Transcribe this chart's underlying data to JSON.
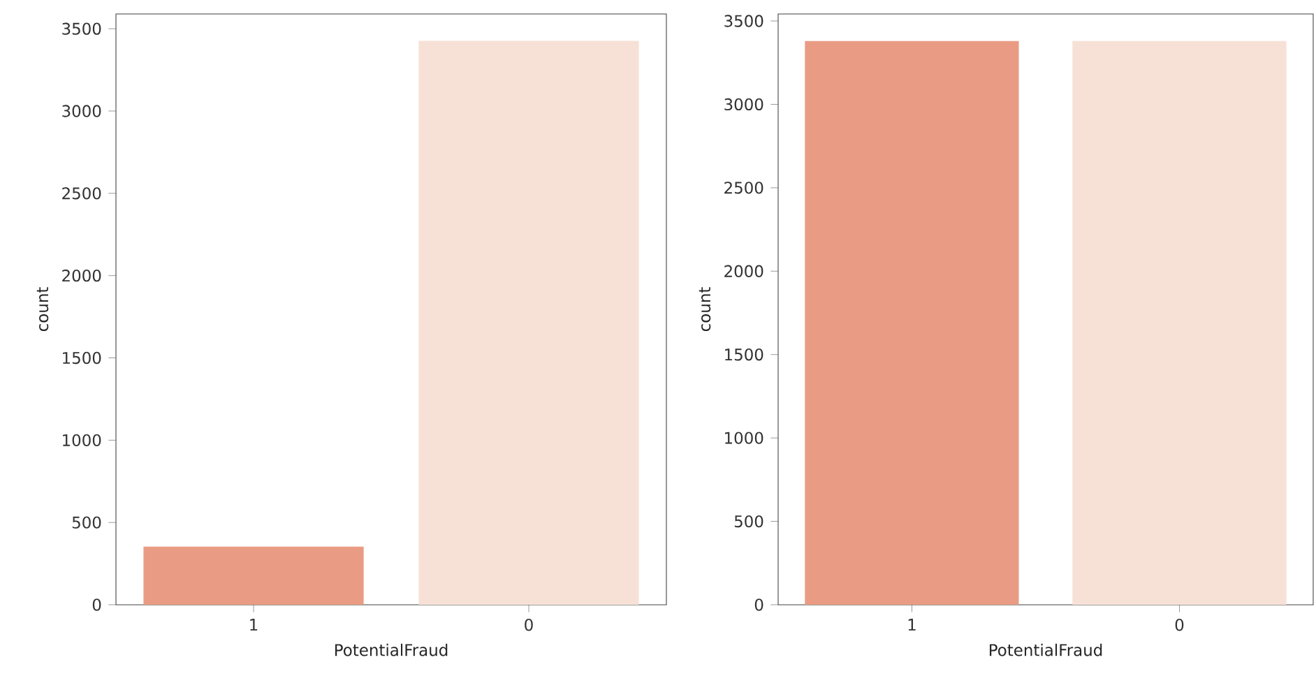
{
  "chart_data": [
    {
      "type": "bar",
      "categories": [
        "1",
        "0"
      ],
      "values": [
        353,
        3427
      ],
      "colors": [
        "#e99c83",
        "#f7e1d7"
      ],
      "xlabel": "PotentialFraud",
      "ylabel": "count",
      "ylim": [
        0,
        3590
      ],
      "yticks": [
        0,
        500,
        1000,
        1500,
        2000,
        2500,
        3000,
        3500
      ]
    },
    {
      "type": "bar",
      "categories": [
        "1",
        "0"
      ],
      "values": [
        3380,
        3380
      ],
      "colors": [
        "#e99c83",
        "#f7e1d7"
      ],
      "xlabel": "PotentialFraud",
      "ylabel": "count",
      "ylim": [
        0,
        3542
      ],
      "yticks": [
        0,
        500,
        1000,
        1500,
        2000,
        2500,
        3000,
        3500
      ]
    }
  ]
}
